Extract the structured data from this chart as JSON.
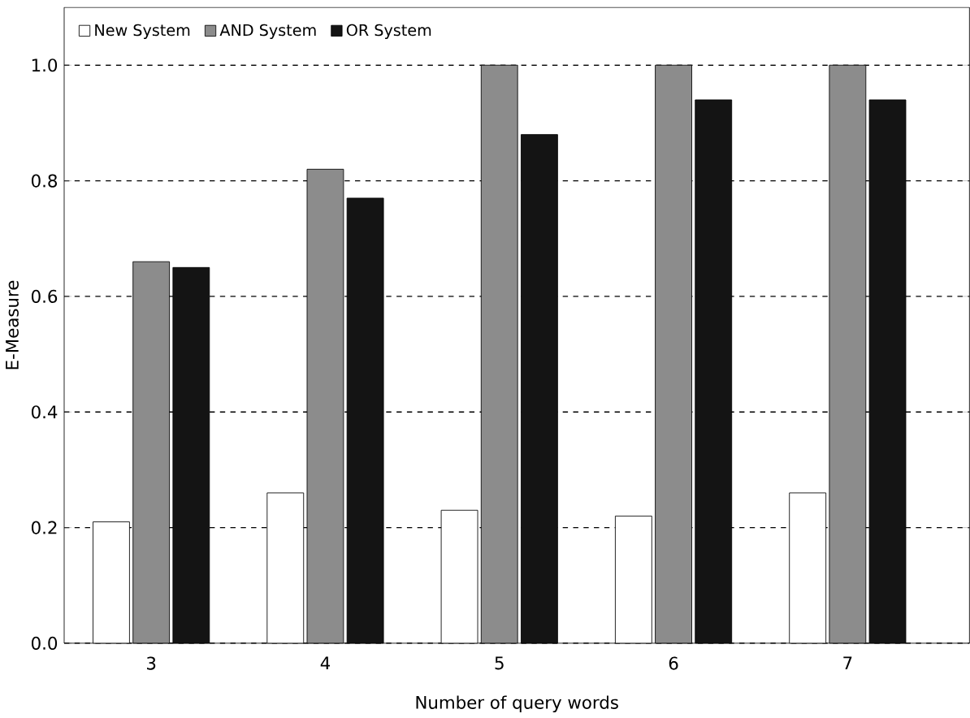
{
  "chart_data": {
    "type": "bar",
    "xlabel": "Number of query words",
    "ylabel": "E-Measure",
    "categories": [
      "3",
      "4",
      "5",
      "6",
      "7"
    ],
    "series": [
      {
        "name": "New System",
        "color": "#ffffff",
        "values": [
          0.21,
          0.26,
          0.23,
          0.22,
          0.26
        ]
      },
      {
        "name": "AND System",
        "color": "#8c8c8c",
        "values": [
          0.66,
          0.82,
          1.0,
          1.0,
          1.0
        ]
      },
      {
        "name": "OR System",
        "color": "#141414",
        "values": [
          0.65,
          0.77,
          0.88,
          0.94,
          0.94
        ]
      }
    ],
    "ylim": [
      0,
      1.1
    ],
    "yticks": [
      {
        "value": 0.0,
        "label": "0.0"
      },
      {
        "value": 0.2,
        "label": "0.2"
      },
      {
        "value": 0.4,
        "label": "0.4"
      },
      {
        "value": 0.6,
        "label": "0.6"
      },
      {
        "value": 0.8,
        "label": "0.8"
      },
      {
        "value": 1.0,
        "label": "1.0"
      }
    ],
    "grid": "y",
    "legend": "top left"
  }
}
